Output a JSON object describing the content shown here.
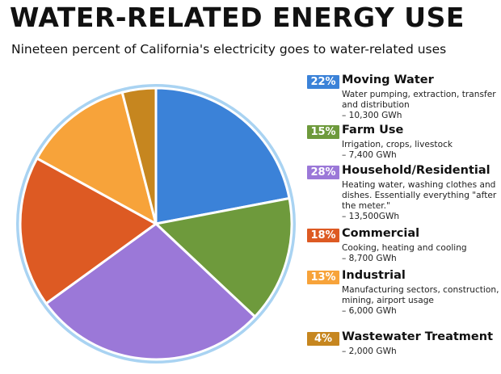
{
  "title": "WATER-RELATED ENERGY USE",
  "subtitle": "Nineteen percent of California's electricity goes to water-related uses",
  "chart_data": {
    "type": "pie",
    "title": "WATER-RELATED ENERGY USE",
    "subtitle": "Nineteen percent of California's electricity goes to water-related uses",
    "slices": [
      {
        "label": "Moving Water",
        "percent": 22,
        "percent_label": "22%",
        "color": "#3b82d8",
        "desc": "Water pumping, extraction, transfer and distribution",
        "amount": "– 10,300 GWh"
      },
      {
        "label": "Farm Use",
        "percent": 15,
        "percent_label": "15%",
        "color": "#6e9a3c",
        "desc": "Irrigation, crops, livestock",
        "amount": "– 7,400 GWh"
      },
      {
        "label": "Household/Residential",
        "percent": 28,
        "percent_label": "28%",
        "color": "#9b78d8",
        "desc": "Heating water, washing clothes and dishes. Essentially everything \"after the meter.\"",
        "amount": "– 13,500GWh"
      },
      {
        "label": "Commercial",
        "percent": 18,
        "percent_label": "18%",
        "color": "#dd5a23",
        "desc": "Cooking, heating and cooling",
        "amount": "– 8,700 GWh"
      },
      {
        "label": "Industrial",
        "percent": 13,
        "percent_label": "13%",
        "color": "#f7a33a",
        "desc": "Manufacturing sectors, construction, mining, airport usage",
        "amount": "– 6,000 GWh"
      },
      {
        "label": "Wastewater Treatment",
        "percent": 4,
        "percent_label": "4%",
        "color": "#c6861f",
        "desc": "",
        "amount": "– 2,000 GWh"
      }
    ],
    "ring_color": "#a9d3f2"
  }
}
